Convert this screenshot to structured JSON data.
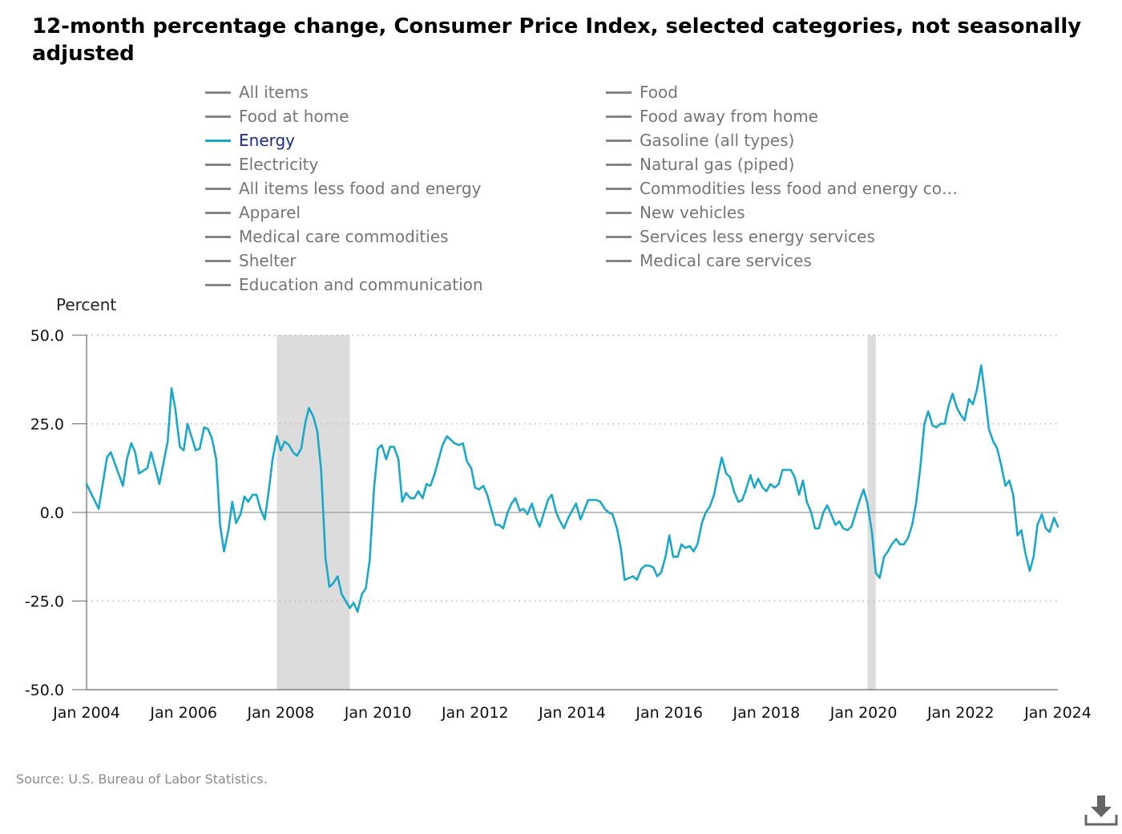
{
  "chart_data": {
    "type": "line",
    "title": "12-month percentage change, Consumer Price Index, selected categories, not seasonally adjusted",
    "ylabel": "Percent",
    "xlabel": "",
    "ylim": [
      -50,
      50
    ],
    "yticks": [
      50,
      25,
      0,
      -25,
      -50
    ],
    "ytick_labels": [
      "50.0",
      "25.0",
      "0.0",
      "-25.0",
      "-50.0"
    ],
    "xlim": [
      2004.0,
      2024.0
    ],
    "xticks": [
      2004,
      2006,
      2008,
      2010,
      2012,
      2014,
      2016,
      2018,
      2020,
      2022,
      2024
    ],
    "xtick_labels": [
      "Jan 2004",
      "Jan 2006",
      "Jan 2008",
      "Jan 2010",
      "Jan 2012",
      "Jan 2014",
      "Jan 2016",
      "Jan 2018",
      "Jan 2020",
      "Jan 2022",
      "Jan 2024"
    ],
    "grid": "horizontal dotted",
    "recessions": [
      [
        2007.92,
        2009.42
      ],
      [
        2020.08,
        2020.25
      ]
    ],
    "legend": [
      {
        "label": "All items",
        "active": false
      },
      {
        "label": "Food",
        "active": false
      },
      {
        "label": "Food at home",
        "active": false
      },
      {
        "label": "Food away from home",
        "active": false
      },
      {
        "label": "Energy",
        "active": true
      },
      {
        "label": "Gasoline (all types)",
        "active": false
      },
      {
        "label": "Electricity",
        "active": false
      },
      {
        "label": "Natural gas (piped)",
        "active": false
      },
      {
        "label": "All items less food and energy",
        "active": false
      },
      {
        "label": "Commodities less food and energy com…",
        "active": false
      },
      {
        "label": "Apparel",
        "active": false
      },
      {
        "label": "New vehicles",
        "active": false
      },
      {
        "label": "Medical care commodities",
        "active": false
      },
      {
        "label": "Services less energy services",
        "active": false
      },
      {
        "label": "Shelter",
        "active": false
      },
      {
        "label": "Medical care services",
        "active": false
      },
      {
        "label": "Education and communication",
        "active": false
      }
    ],
    "series": [
      {
        "name": "Energy",
        "color": "#1ba8c8",
        "points": [
          [
            2004.0,
            8.0
          ],
          [
            2004.25,
            1.0
          ],
          [
            2004.42,
            15.5
          ],
          [
            2004.5,
            17.0
          ],
          [
            2004.75,
            7.5
          ],
          [
            2004.83,
            15.0
          ],
          [
            2004.92,
            19.5
          ],
          [
            2005.0,
            17.0
          ],
          [
            2005.08,
            11.0
          ],
          [
            2005.25,
            12.5
          ],
          [
            2005.33,
            17.0
          ],
          [
            2005.5,
            8.0
          ],
          [
            2005.67,
            20.0
          ],
          [
            2005.75,
            35.0
          ],
          [
            2005.83,
            29.0
          ],
          [
            2005.92,
            18.5
          ],
          [
            2006.0,
            17.5
          ],
          [
            2006.08,
            25.0
          ],
          [
            2006.25,
            17.5
          ],
          [
            2006.33,
            18.0
          ],
          [
            2006.42,
            24.0
          ],
          [
            2006.5,
            23.5
          ],
          [
            2006.58,
            21.0
          ],
          [
            2006.67,
            15.0
          ],
          [
            2006.75,
            -3.5
          ],
          [
            2006.83,
            -11.0
          ],
          [
            2006.92,
            -5.0
          ],
          [
            2007.0,
            3.0
          ],
          [
            2007.08,
            -3.0
          ],
          [
            2007.17,
            -0.5
          ],
          [
            2007.25,
            4.5
          ],
          [
            2007.33,
            3.0
          ],
          [
            2007.42,
            5.0
          ],
          [
            2007.5,
            5.0
          ],
          [
            2007.58,
            1.0
          ],
          [
            2007.67,
            -2.0
          ],
          [
            2007.75,
            6.0
          ],
          [
            2007.83,
            15.0
          ],
          [
            2007.92,
            21.5
          ],
          [
            2008.0,
            17.5
          ],
          [
            2008.08,
            20.0
          ],
          [
            2008.17,
            19.0
          ],
          [
            2008.25,
            17.0
          ],
          [
            2008.33,
            16.0
          ],
          [
            2008.42,
            18.0
          ],
          [
            2008.5,
            25.0
          ],
          [
            2008.58,
            29.5
          ],
          [
            2008.67,
            27.0
          ],
          [
            2008.75,
            23.0
          ],
          [
            2008.83,
            12.0
          ],
          [
            2008.92,
            -13.0
          ],
          [
            2009.0,
            -21.0
          ],
          [
            2009.08,
            -20.0
          ],
          [
            2009.17,
            -18.0
          ],
          [
            2009.25,
            -23.0
          ],
          [
            2009.42,
            -27.0
          ],
          [
            2009.5,
            -25.5
          ],
          [
            2009.58,
            -28.0
          ],
          [
            2009.67,
            -23.0
          ],
          [
            2009.75,
            -21.5
          ],
          [
            2009.83,
            -13.5
          ],
          [
            2009.92,
            7.0
          ],
          [
            2010.0,
            18.0
          ],
          [
            2010.08,
            19.0
          ],
          [
            2010.17,
            15.0
          ],
          [
            2010.25,
            18.5
          ],
          [
            2010.33,
            18.5
          ],
          [
            2010.42,
            15.0
          ],
          [
            2010.5,
            3.0
          ],
          [
            2010.58,
            5.5
          ],
          [
            2010.67,
            4.0
          ],
          [
            2010.75,
            4.0
          ],
          [
            2010.83,
            6.0
          ],
          [
            2010.92,
            4.0
          ],
          [
            2011.0,
            8.0
          ],
          [
            2011.08,
            7.5
          ],
          [
            2011.17,
            11.0
          ],
          [
            2011.33,
            19.0
          ],
          [
            2011.42,
            21.5
          ],
          [
            2011.5,
            20.5
          ],
          [
            2011.58,
            19.5
          ],
          [
            2011.67,
            19.0
          ],
          [
            2011.75,
            19.5
          ],
          [
            2011.83,
            14.5
          ],
          [
            2011.92,
            12.5
          ],
          [
            2012.0,
            7.0
          ],
          [
            2012.08,
            6.5
          ],
          [
            2012.17,
            7.5
          ],
          [
            2012.25,
            5.0
          ],
          [
            2012.33,
            1.0
          ],
          [
            2012.42,
            -3.5
          ],
          [
            2012.5,
            -3.5
          ],
          [
            2012.58,
            -4.5
          ],
          [
            2012.67,
            0.0
          ],
          [
            2012.75,
            2.5
          ],
          [
            2012.83,
            4.0
          ],
          [
            2012.92,
            0.5
          ],
          [
            2013.0,
            1.0
          ],
          [
            2013.08,
            -0.5
          ],
          [
            2013.17,
            2.5
          ],
          [
            2013.25,
            -1.5
          ],
          [
            2013.33,
            -4.0
          ],
          [
            2013.42,
            0.0
          ],
          [
            2013.5,
            3.5
          ],
          [
            2013.58,
            5.0
          ],
          [
            2013.67,
            0.0
          ],
          [
            2013.75,
            -2.5
          ],
          [
            2013.83,
            -4.5
          ],
          [
            2013.92,
            -1.5
          ],
          [
            2014.0,
            0.5
          ],
          [
            2014.08,
            2.5
          ],
          [
            2014.17,
            -2.0
          ],
          [
            2014.33,
            3.5
          ],
          [
            2014.5,
            3.5
          ],
          [
            2014.58,
            3.0
          ],
          [
            2014.67,
            1.0
          ],
          [
            2014.75,
            0.0
          ],
          [
            2014.83,
            -0.5
          ],
          [
            2014.92,
            -4.5
          ],
          [
            2015.0,
            -10.0
          ],
          [
            2015.08,
            -19.0
          ],
          [
            2015.17,
            -18.5
          ],
          [
            2015.25,
            -18.0
          ],
          [
            2015.33,
            -19.0
          ],
          [
            2015.42,
            -16.0
          ],
          [
            2015.5,
            -15.0
          ],
          [
            2015.58,
            -15.0
          ],
          [
            2015.67,
            -15.5
          ],
          [
            2015.75,
            -18.0
          ],
          [
            2015.83,
            -17.0
          ],
          [
            2015.92,
            -12.5
          ],
          [
            2016.0,
            -6.5
          ],
          [
            2016.08,
            -12.5
          ],
          [
            2016.17,
            -12.5
          ],
          [
            2016.25,
            -9.0
          ],
          [
            2016.33,
            -10.0
          ],
          [
            2016.42,
            -9.5
          ],
          [
            2016.5,
            -11.0
          ],
          [
            2016.58,
            -9.0
          ],
          [
            2016.67,
            -3.0
          ],
          [
            2016.75,
            0.0
          ],
          [
            2016.83,
            1.5
          ],
          [
            2016.92,
            5.0
          ],
          [
            2017.0,
            10.5
          ],
          [
            2017.08,
            15.5
          ],
          [
            2017.17,
            11.0
          ],
          [
            2017.25,
            10.0
          ],
          [
            2017.33,
            6.0
          ],
          [
            2017.42,
            3.0
          ],
          [
            2017.5,
            3.5
          ],
          [
            2017.58,
            6.5
          ],
          [
            2017.67,
            10.5
          ],
          [
            2017.75,
            7.0
          ],
          [
            2017.83,
            9.5
          ],
          [
            2017.92,
            7.0
          ],
          [
            2018.0,
            6.0
          ],
          [
            2018.08,
            8.0
          ],
          [
            2018.17,
            7.0
          ],
          [
            2018.25,
            8.0
          ],
          [
            2018.33,
            12.0
          ],
          [
            2018.42,
            12.0
          ],
          [
            2018.5,
            12.0
          ],
          [
            2018.58,
            10.0
          ],
          [
            2018.67,
            5.0
          ],
          [
            2018.75,
            9.0
          ],
          [
            2018.83,
            3.0
          ],
          [
            2018.92,
            0.0
          ],
          [
            2019.0,
            -4.5
          ],
          [
            2019.08,
            -4.5
          ],
          [
            2019.17,
            0.0
          ],
          [
            2019.25,
            2.0
          ],
          [
            2019.33,
            -0.5
          ],
          [
            2019.42,
            -3.5
          ],
          [
            2019.5,
            -2.5
          ],
          [
            2019.58,
            -4.5
          ],
          [
            2019.67,
            -5.0
          ],
          [
            2019.75,
            -4.0
          ],
          [
            2019.83,
            -0.5
          ],
          [
            2019.92,
            3.5
          ],
          [
            2020.0,
            6.5
          ],
          [
            2020.08,
            2.5
          ],
          [
            2020.17,
            -5.5
          ],
          [
            2020.25,
            -17.0
          ],
          [
            2020.33,
            -18.5
          ],
          [
            2020.42,
            -12.5
          ],
          [
            2020.5,
            -11.0
          ],
          [
            2020.58,
            -9.0
          ],
          [
            2020.67,
            -7.5
          ],
          [
            2020.75,
            -9.0
          ],
          [
            2020.83,
            -9.0
          ],
          [
            2020.92,
            -7.0
          ],
          [
            2021.0,
            -3.5
          ],
          [
            2021.08,
            2.5
          ],
          [
            2021.17,
            13.0
          ],
          [
            2021.25,
            25.0
          ],
          [
            2021.33,
            28.5
          ],
          [
            2021.42,
            24.5
          ],
          [
            2021.5,
            24.0
          ],
          [
            2021.58,
            25.0
          ],
          [
            2021.67,
            25.0
          ],
          [
            2021.75,
            30.0
          ],
          [
            2021.83,
            33.5
          ],
          [
            2021.92,
            29.5
          ],
          [
            2022.0,
            27.5
          ],
          [
            2022.08,
            26.0
          ],
          [
            2022.17,
            32.0
          ],
          [
            2022.25,
            30.5
          ],
          [
            2022.33,
            34.5
          ],
          [
            2022.42,
            41.5
          ],
          [
            2022.5,
            33.0
          ],
          [
            2022.58,
            23.5
          ],
          [
            2022.67,
            20.0
          ],
          [
            2022.75,
            18.0
          ],
          [
            2022.83,
            13.5
          ],
          [
            2022.92,
            7.5
          ],
          [
            2023.0,
            9.0
          ],
          [
            2023.08,
            5.0
          ],
          [
            2023.17,
            -6.5
          ],
          [
            2023.25,
            -5.0
          ],
          [
            2023.33,
            -11.5
          ],
          [
            2023.42,
            -16.5
          ],
          [
            2023.5,
            -12.5
          ],
          [
            2023.58,
            -3.5
          ],
          [
            2023.67,
            -0.5
          ],
          [
            2023.75,
            -4.5
          ],
          [
            2023.83,
            -5.5
          ],
          [
            2023.92,
            -1.5
          ],
          [
            2024.0,
            -4.0
          ]
        ]
      }
    ],
    "source": "Source: U.S. Bureau of Labor Statistics."
  },
  "ui": {
    "download_icon": "download-icon"
  }
}
